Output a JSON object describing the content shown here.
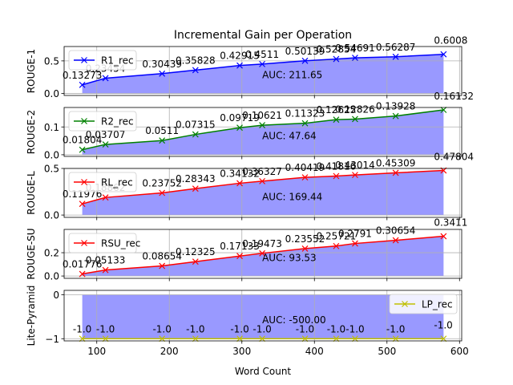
{
  "chart_data": {
    "type": "line",
    "title": "Incremental Gain per Operation",
    "xlabel": "Word Count",
    "x": [
      80,
      112,
      190,
      236,
      297,
      328,
      387,
      430,
      456,
      512,
      578
    ],
    "xlim": [
      55,
      603
    ],
    "xticks": [
      100,
      200,
      300,
      400,
      500,
      600
    ],
    "fill_color": "#9999ff",
    "panels": [
      {
        "ylabel": "ROUGE-1",
        "series_name": "R1_rec",
        "color": "#0000ff",
        "values": [
          0.13273,
          0.23454,
          0.30439,
          0.35828,
          0.42915,
          0.4511,
          0.50139,
          0.52854,
          0.54691,
          0.56287,
          0.6008
        ],
        "labels": [
          "0.13273",
          "0.23454",
          "0.30439",
          "0.35828",
          "0.42915",
          "0.4511",
          "0.50139",
          "0.52854",
          "0.54691",
          "0.56287",
          "0.6008"
        ],
        "ylim": [
          -0.03,
          0.72
        ],
        "yticks": [
          0.0,
          0.5
        ],
        "ytick_labels": [
          "0.0",
          "0.5"
        ],
        "auc": "AUC: 211.65",
        "legend": "top-left"
      },
      {
        "ylabel": "ROUGE-2",
        "series_name": "R2_rec",
        "color": "#008000",
        "values": [
          0.01804,
          0.03707,
          0.0511,
          0.07315,
          0.09719,
          0.10621,
          0.11323,
          0.12625,
          0.12826,
          0.13928,
          0.16132
        ],
        "labels": [
          "0.01804",
          "0.03707",
          "0.0511",
          "0.07315",
          "0.09719",
          "0.10621",
          "0.11323",
          "0.12625",
          "0.12826",
          "0.13928",
          "0.16132"
        ],
        "ylim": [
          -0.006,
          0.17
        ],
        "yticks": [
          0.0,
          0.1
        ],
        "ytick_labels": [
          "0.0",
          "0.1"
        ],
        "auc": "AUC: 47.64",
        "legend": "top-left"
      },
      {
        "ylabel": "ROUGE-L",
        "series_name": "RL_rec",
        "color": "#ff0000",
        "values": [
          0.11976,
          0.18862,
          0.23752,
          0.28343,
          0.34132,
          0.36327,
          0.40419,
          0.41816,
          0.43014,
          0.45309,
          0.47804
        ],
        "labels": [
          "0.11976",
          "0.18862",
          "0.23752",
          "0.28343",
          "0.34132",
          "0.36327",
          "0.40419",
          "0.41816",
          "0.43014",
          "0.45309",
          "0.47804"
        ],
        "ylim": [
          -0.025,
          0.5
        ],
        "yticks": [
          0.0,
          0.5
        ],
        "ytick_labels": [
          "0.0",
          "0.5"
        ],
        "auc": "AUC: 169.44",
        "legend": "top-left"
      },
      {
        "ylabel": "ROUGE-SU",
        "series_name": "RSU_rec",
        "color": "#ff0000",
        "values": [
          0.01776,
          0.05133,
          0.08654,
          0.12325,
          0.17133,
          0.19473,
          0.23552,
          0.25721,
          0.2791,
          0.30654,
          0.3411
        ],
        "labels": [
          "0.01776",
          "0.05133",
          "0.08654",
          "0.12325",
          "0.17133",
          "0.19473",
          "0.23552",
          "0.25721",
          "0.2791",
          "0.30654",
          "0.3411"
        ],
        "ylim": [
          -0.02,
          0.4
        ],
        "yticks": [
          0.0,
          0.2
        ],
        "ytick_labels": [
          "0.0",
          "0.2"
        ],
        "auc": "AUC: 93.53",
        "legend": "top-left"
      },
      {
        "ylabel": "Lite-Pyramid",
        "series_name": "LP_rec",
        "color": "#bfbf00",
        "values": [
          -1.0,
          -1.0,
          -1.0,
          -1.0,
          -1.0,
          -1.0,
          -1.0,
          -1.0,
          -1.0,
          -1.0,
          -1.0
        ],
        "labels": [
          "-1.0",
          "-1.0",
          "-1.0",
          "-1.0",
          "-1.0",
          "-1.0",
          "-1.0",
          "-1.0",
          "-1.0",
          "-1.0",
          "-1.0"
        ],
        "ylim": [
          -1.05,
          0.1
        ],
        "yticks": [
          -1,
          0
        ],
        "ytick_labels": [
          "−1",
          "0"
        ],
        "auc": "AUC: -500.00",
        "legend": "top-right"
      }
    ]
  }
}
